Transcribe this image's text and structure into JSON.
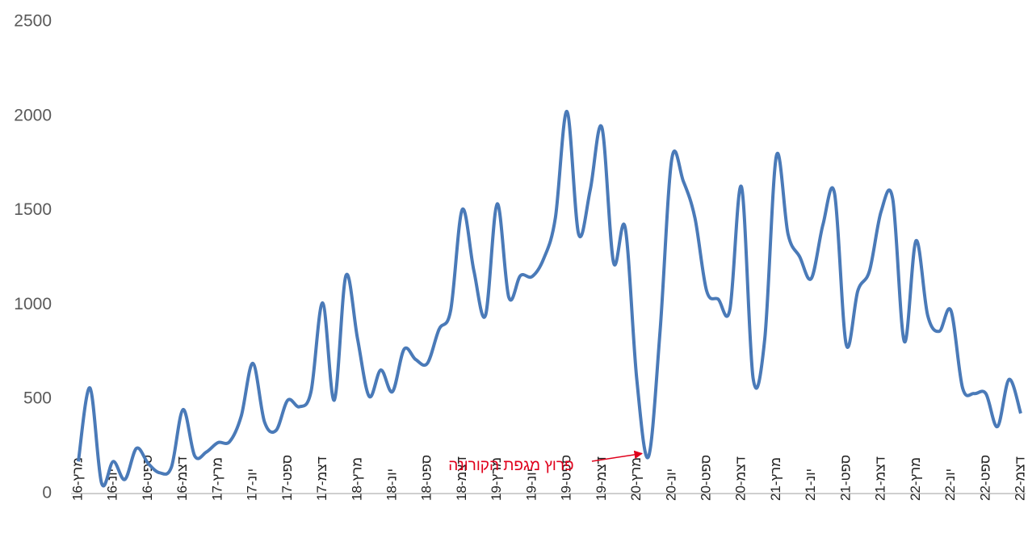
{
  "chart_data": {
    "type": "line",
    "categories": [
      "מרץ-16",
      null,
      null,
      "יונ-16",
      null,
      null,
      "ספט-16",
      null,
      null,
      "דצמ-16",
      null,
      null,
      "מרץ-17",
      null,
      null,
      "יונ-17",
      null,
      null,
      "ספט-17",
      null,
      null,
      "דצמ-17",
      null,
      null,
      "מרץ-18",
      null,
      null,
      "יונ-18",
      null,
      null,
      "ספט-18",
      null,
      null,
      "דצמ-18",
      null,
      null,
      "מרץ-19",
      null,
      null,
      "יונ-19",
      null,
      null,
      "ספט-19",
      null,
      null,
      "דצמ-19",
      null,
      null,
      "מרץ-20",
      null,
      null,
      "יונ-20",
      null,
      null,
      "ספט-20",
      null,
      null,
      "דצמ-20",
      null,
      null,
      "מרץ-21",
      null,
      null,
      "יונ-21",
      null,
      null,
      "ספט-21",
      null,
      null,
      "דצמ-21",
      null,
      null,
      "מרץ-22",
      null,
      null,
      "יונ-22",
      null,
      null,
      "ספט-22",
      null,
      null,
      "דצמ-22"
    ],
    "series": [
      {
        "color": "#4a7ab8",
        "values": [
          170,
          560,
          55,
          170,
          75,
          240,
          160,
          110,
          140,
          445,
          200,
          220,
          270,
          275,
          410,
          690,
          380,
          335,
          495,
          460,
          540,
          1010,
          495,
          1155,
          820,
          515,
          655,
          540,
          765,
          710,
          690,
          870,
          970,
          1505,
          1180,
          945,
          1535,
          1040,
          1155,
          1150,
          1245,
          1460,
          2025,
          1375,
          1610,
          1940,
          1225,
          1410,
          605,
          195,
          860,
          1770,
          1655,
          1460,
          1075,
          1030,
          975,
          1625,
          610,
          820,
          1790,
          1375,
          1255,
          1140,
          1425,
          1590,
          790,
          1075,
          1180,
          1495,
          1560,
          805,
          1340,
          945,
          860,
          970,
          560,
          530,
          530,
          355,
          605,
          425
        ]
      }
    ],
    "annotations": [
      {
        "text": "פרוץ מגפת הקורונה",
        "color": "#e0001b",
        "index": 49
      }
    ],
    "ylim": [
      0,
      2500
    ],
    "yticks": [
      0,
      500,
      1000,
      1500,
      2000,
      2500
    ],
    "grid": false
  }
}
